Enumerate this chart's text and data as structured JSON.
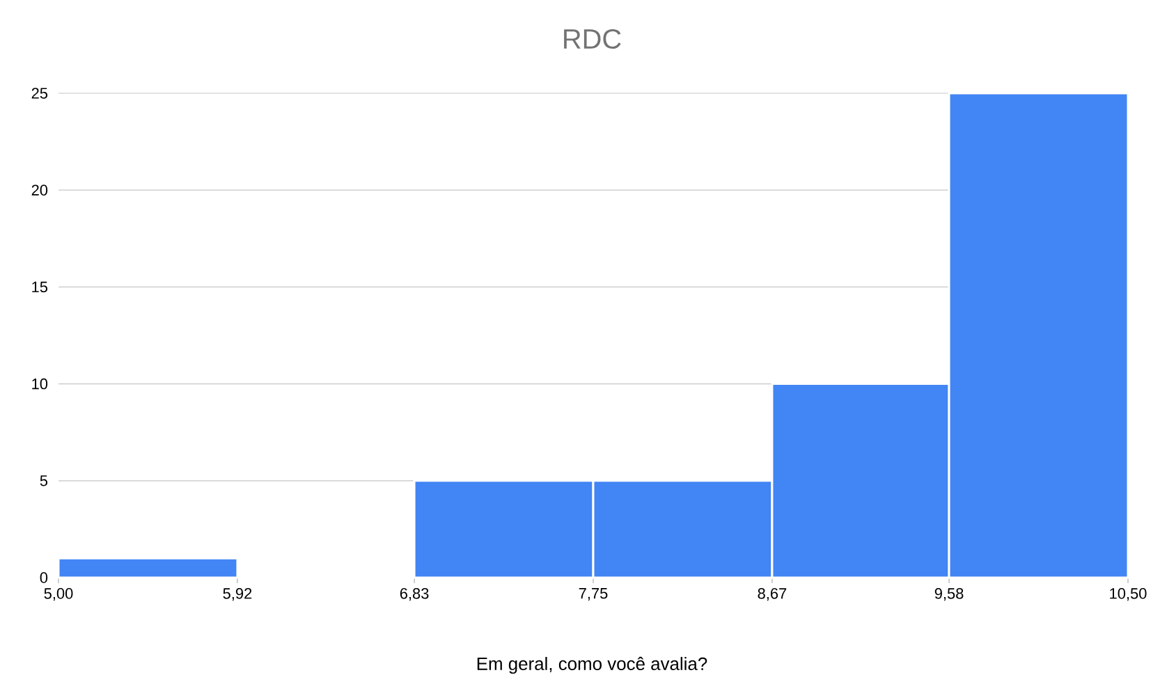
{
  "chart_data": {
    "type": "histogram",
    "title": "RDC",
    "xlabel": "Em geral, como você avalia?",
    "bins": [
      5.0,
      5.92,
      6.83,
      7.75,
      8.67,
      9.58,
      10.5
    ],
    "values": [
      1,
      0,
      5,
      5,
      10,
      25
    ],
    "color": "#4285f4",
    "xlim": [
      5.0,
      10.5
    ],
    "xticks": [
      {
        "value": 5.0,
        "label": "5,00"
      },
      {
        "value": 5.92,
        "label": "5,92"
      },
      {
        "value": 6.83,
        "label": "6,83"
      },
      {
        "value": 7.75,
        "label": "7,75"
      },
      {
        "value": 8.67,
        "label": "8,67"
      },
      {
        "value": 9.58,
        "label": "9,58"
      },
      {
        "value": 10.5,
        "label": "10,50"
      }
    ],
    "ylim": [
      0,
      25
    ],
    "yticks": [
      0,
      5,
      10,
      15,
      20,
      25
    ],
    "grid": "y"
  }
}
